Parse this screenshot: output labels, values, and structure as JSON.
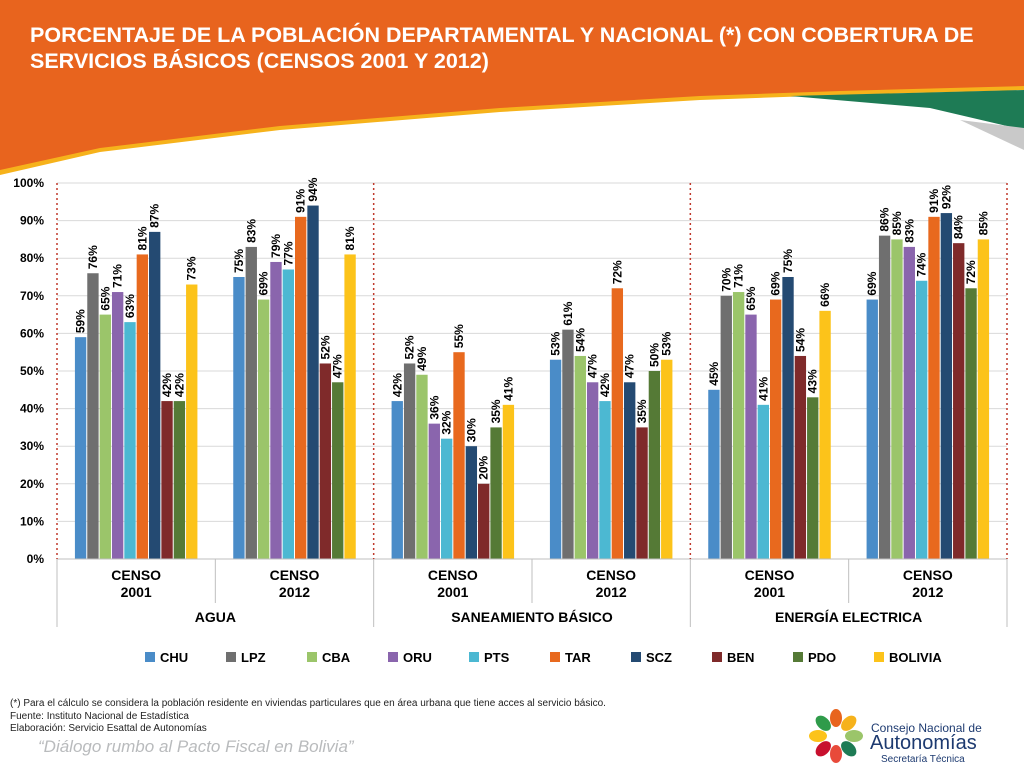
{
  "slide": {
    "title": "PORCENTAJE DE LA POBLACIÓN DEPARTAMENTAL Y NACIONAL (*) CON COBERTURA DE SERVICIOS BÁSICOS (CENSOS 2001 Y 2012)",
    "footnotes": [
      "(*)  Para el cálculo se considera la población residente en viviendas particulares que en área urbana que tiene acces al servicio básico.",
      "Fuente: Instituto Nacional de Estadística",
      "Elaboración: Servicio Esattal de Autonomías"
    ],
    "slogan": "“Diálogo rumbo al Pacto Fiscal en Bolivia”",
    "logo": {
      "line1": "Consejo Nacional de",
      "line2": "Autonomías",
      "line3": "Secretaría Técnica"
    },
    "colors": {
      "banner_orange": "#e8641e",
      "banner_yellow": "#f6b21b",
      "banner_green": "#1e7b55",
      "banner_gray": "#c9c9c9"
    }
  },
  "chart_data": {
    "type": "bar",
    "ylim": [
      0,
      100
    ],
    "yticks": [
      0,
      10,
      20,
      30,
      40,
      50,
      60,
      70,
      80,
      90,
      100
    ],
    "ytick_suffix": "%",
    "grid": true,
    "legend_position": "bottom",
    "groups": [
      {
        "name": "AGUA",
        "subcategories": [
          {
            "line1": "CENSO",
            "line2": "2001"
          },
          {
            "line1": "CENSO",
            "line2": "2012"
          }
        ]
      },
      {
        "name": "SANEAMIENTO BÁSICO",
        "subcategories": [
          {
            "line1": "CENSO",
            "line2": "2001"
          },
          {
            "line1": "CENSO",
            "line2": "2012"
          }
        ]
      },
      {
        "name": "ENERGÍA ELECTRICA",
        "subcategories": [
          {
            "line1": "CENSO",
            "line2": "2001"
          },
          {
            "line1": "CENSO",
            "line2": "2012"
          }
        ]
      }
    ],
    "series": [
      {
        "name": "CHU",
        "color": "#4a8cc8",
        "values": [
          59,
          75,
          42,
          53,
          45,
          69
        ]
      },
      {
        "name": "LPZ",
        "color": "#6f6f6f",
        "values": [
          76,
          83,
          52,
          61,
          70,
          86
        ]
      },
      {
        "name": "CBA",
        "color": "#9bc56a",
        "values": [
          65,
          69,
          49,
          54,
          71,
          85
        ]
      },
      {
        "name": "ORU",
        "color": "#8a65ad",
        "values": [
          71,
          79,
          36,
          47,
          65,
          83
        ]
      },
      {
        "name": "PTS",
        "color": "#4cb8d2",
        "values": [
          63,
          77,
          32,
          42,
          41,
          74
        ]
      },
      {
        "name": "TAR",
        "color": "#e8691e",
        "values": [
          81,
          91,
          55,
          72,
          69,
          91
        ]
      },
      {
        "name": "SCZ",
        "color": "#244a72",
        "values": [
          87,
          94,
          30,
          47,
          75,
          92
        ]
      },
      {
        "name": "BEN",
        "color": "#7f2a2a",
        "values": [
          42,
          52,
          20,
          35,
          54,
          84
        ]
      },
      {
        "name": "PDO",
        "color": "#557a36",
        "values": [
          42,
          47,
          35,
          50,
          43,
          72
        ]
      },
      {
        "name": "BOLIVIA",
        "color": "#fcc31a",
        "values": [
          73,
          81,
          41,
          53,
          66,
          85
        ]
      }
    ]
  }
}
